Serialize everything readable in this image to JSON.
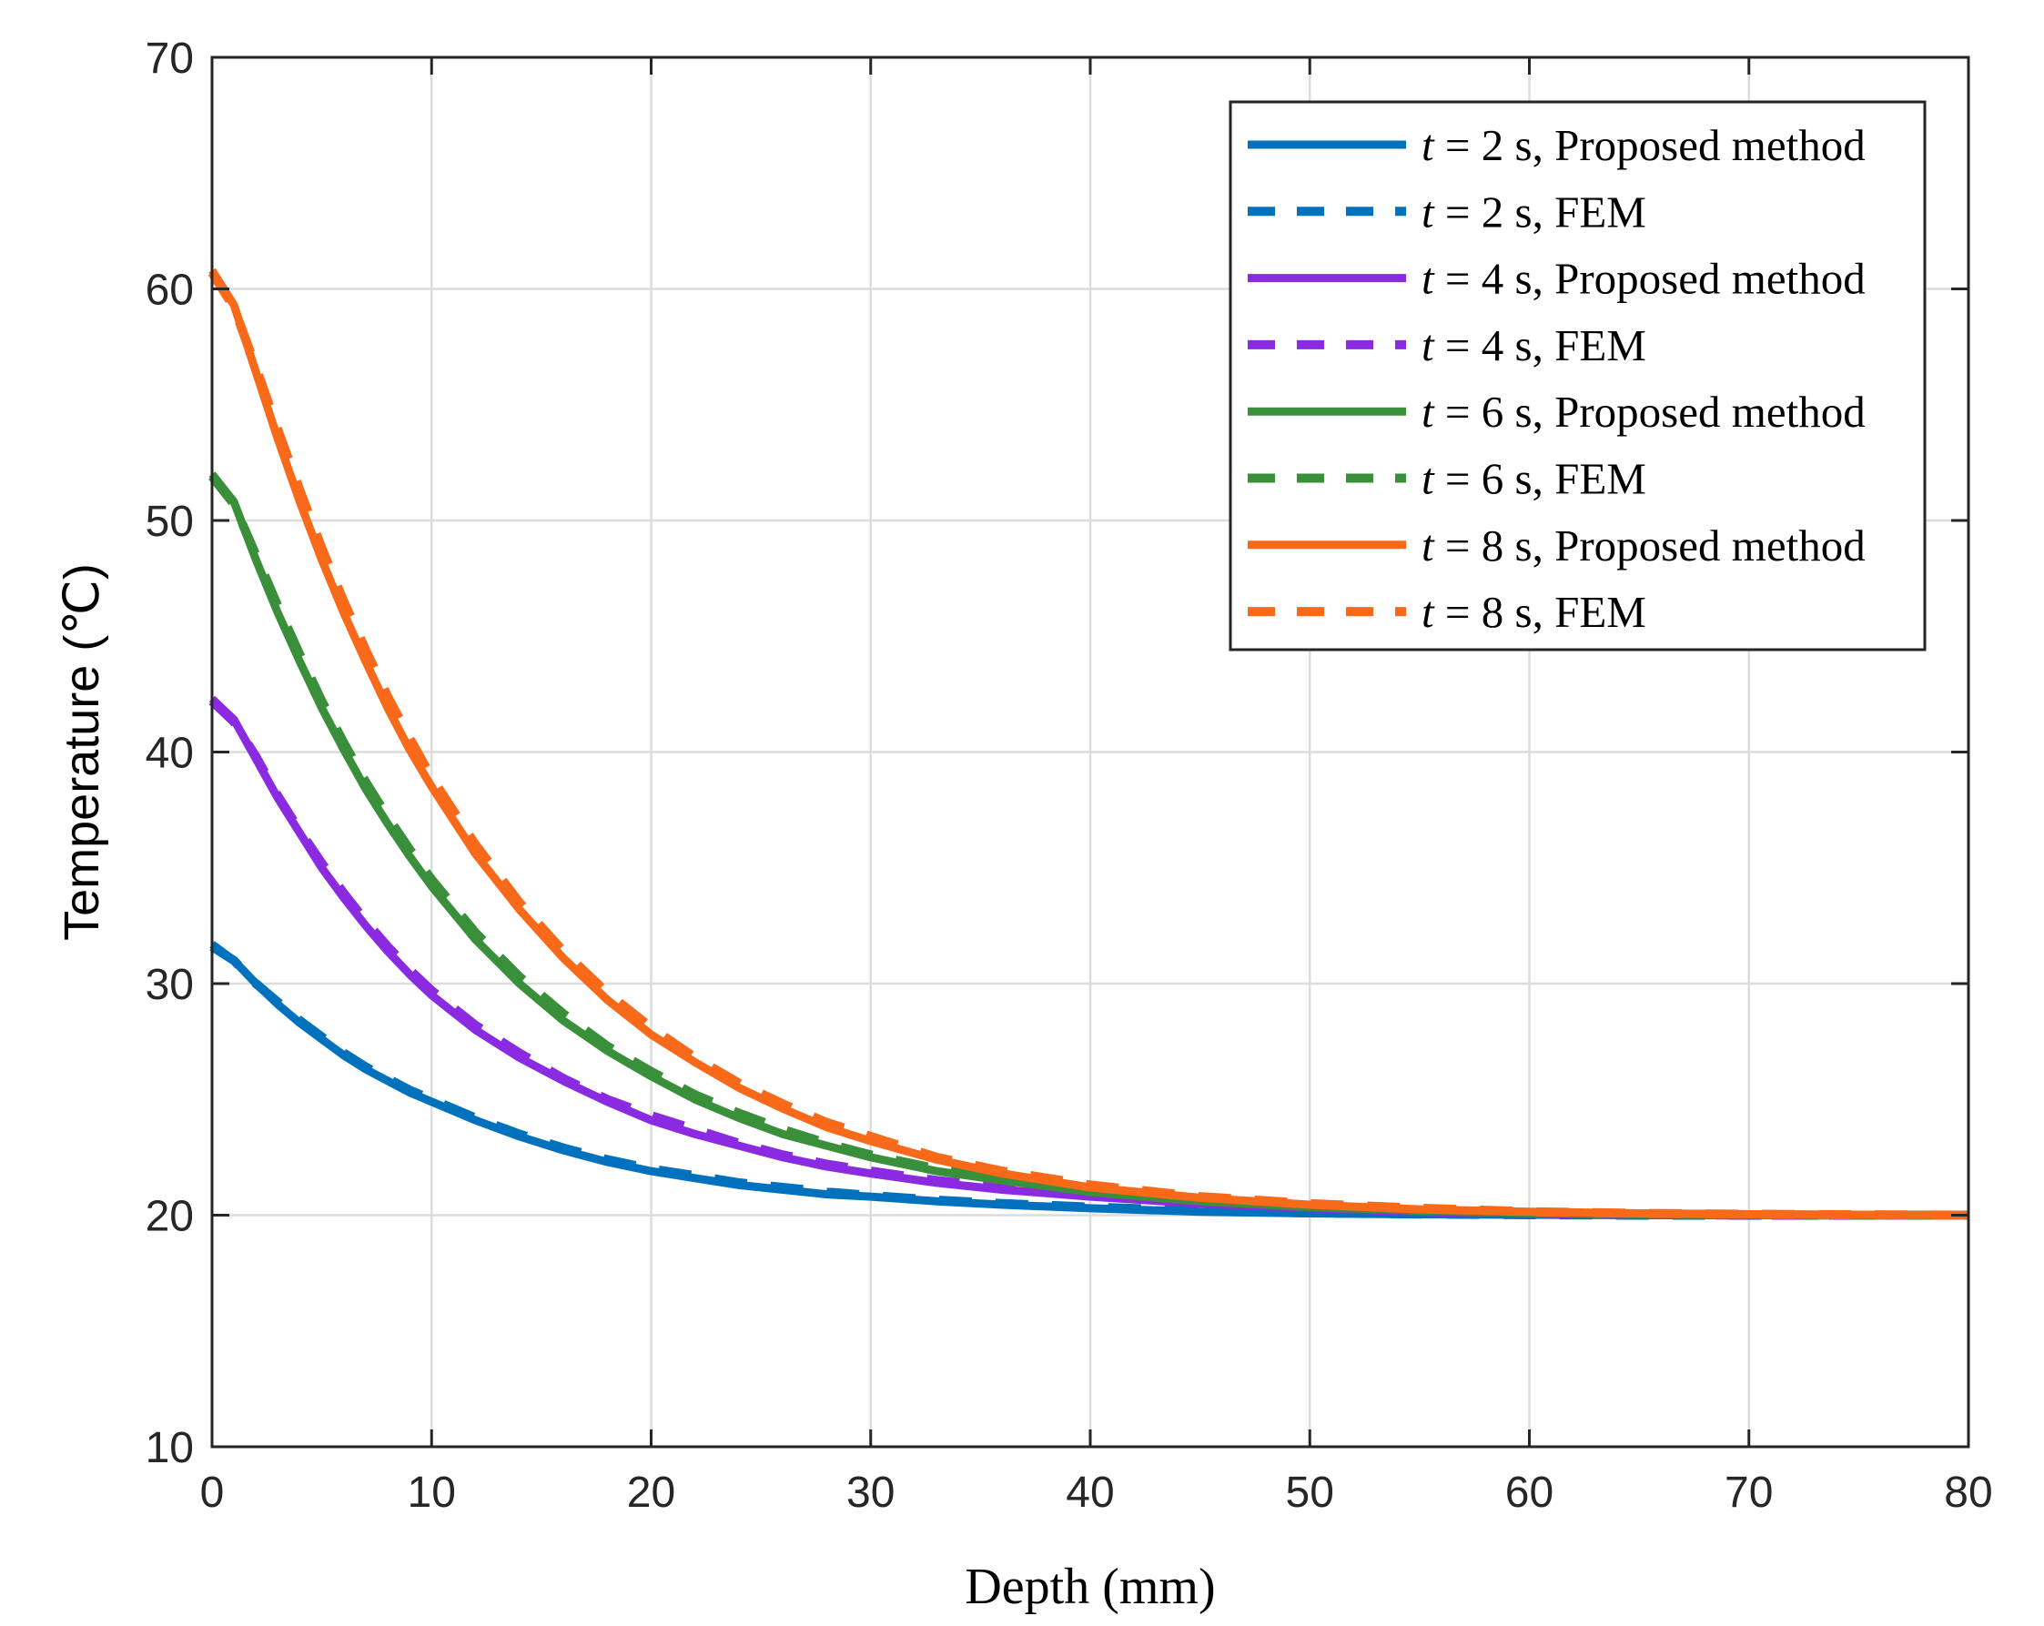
{
  "chart_data": {
    "type": "line",
    "title": "",
    "xlabel": "Depth (mm)",
    "ylabel": "Temperature (℃)",
    "xlim": [
      0,
      80
    ],
    "ylim": [
      10,
      70
    ],
    "xticks": [
      0,
      10,
      20,
      30,
      40,
      50,
      60,
      70,
      80
    ],
    "yticks": [
      10,
      20,
      30,
      40,
      50,
      60,
      70
    ],
    "grid": true,
    "legend_position": "top-right",
    "x": [
      0,
      1,
      2,
      3,
      4,
      5,
      6,
      7,
      8,
      9,
      10,
      12,
      14,
      16,
      18,
      20,
      22,
      24,
      26,
      28,
      30,
      33,
      36,
      40,
      45,
      50,
      55,
      60,
      65,
      70,
      75,
      80
    ],
    "series": [
      {
        "name": "t = 2 s, Proposed method",
        "t_label": "t",
        "rest_label": " = 2 s, Proposed method",
        "color": "#0072BD",
        "style": "solid",
        "values": [
          31.7,
          31.0,
          30.0,
          29.1,
          28.3,
          27.6,
          26.9,
          26.3,
          25.8,
          25.3,
          24.9,
          24.1,
          23.4,
          22.8,
          22.3,
          21.9,
          21.6,
          21.3,
          21.1,
          20.9,
          20.8,
          20.6,
          20.45,
          20.3,
          20.15,
          20.08,
          20.04,
          20.02,
          20.0,
          20.0,
          20.0,
          20.0
        ]
      },
      {
        "name": "t = 2 s, FEM",
        "t_label": "t",
        "rest_label": " = 2 s, FEM",
        "color": "#0072BD",
        "style": "dashed",
        "values": [
          31.6,
          31.0,
          30.0,
          29.2,
          28.4,
          27.7,
          27.0,
          26.4,
          25.9,
          25.4,
          25.0,
          24.2,
          23.5,
          22.9,
          22.4,
          22.0,
          21.7,
          21.4,
          21.2,
          21.0,
          20.85,
          20.65,
          20.5,
          20.35,
          20.2,
          20.1,
          20.05,
          20.02,
          20.0,
          20.0,
          20.0,
          20.0
        ]
      },
      {
        "name": "t = 4 s, Proposed method",
        "t_label": "t",
        "rest_label": " = 4 s, Proposed method",
        "color": "#8A2BE2",
        "style": "solid",
        "values": [
          42.3,
          41.4,
          39.7,
          38.0,
          36.5,
          35.0,
          33.7,
          32.5,
          31.4,
          30.4,
          29.5,
          28.0,
          26.8,
          25.8,
          24.9,
          24.1,
          23.5,
          23.0,
          22.5,
          22.1,
          21.8,
          21.4,
          21.1,
          20.8,
          20.5,
          20.3,
          20.15,
          20.08,
          20.03,
          20.0,
          20.0,
          20.0
        ]
      },
      {
        "name": "t = 4 s, FEM",
        "t_label": "t",
        "rest_label": " = 4 s, FEM",
        "color": "#8A2BE2",
        "style": "dashed",
        "values": [
          42.2,
          41.3,
          39.8,
          38.1,
          36.6,
          35.2,
          33.9,
          32.7,
          31.6,
          30.6,
          29.7,
          28.2,
          27.0,
          25.9,
          25.0,
          24.3,
          23.7,
          23.1,
          22.6,
          22.2,
          21.9,
          21.5,
          21.2,
          20.9,
          20.55,
          20.3,
          20.15,
          20.08,
          20.03,
          20.0,
          20.0,
          20.0
        ]
      },
      {
        "name": "t = 6 s, Proposed method",
        "t_label": "t",
        "rest_label": " = 6 s, Proposed method",
        "color": "#3A8F3A",
        "style": "solid",
        "values": [
          52.0,
          50.8,
          48.3,
          46.0,
          43.9,
          41.9,
          40.1,
          38.4,
          36.9,
          35.5,
          34.2,
          31.9,
          30.0,
          28.4,
          27.1,
          26.0,
          25.0,
          24.2,
          23.5,
          23.0,
          22.5,
          21.9,
          21.5,
          21.0,
          20.6,
          20.35,
          20.2,
          20.1,
          20.05,
          20.02,
          20.0,
          20.0
        ]
      },
      {
        "name": "t = 6 s, FEM",
        "t_label": "t",
        "rest_label": " = 6 s, FEM",
        "color": "#3A8F3A",
        "style": "dashed",
        "values": [
          51.9,
          50.7,
          48.5,
          46.3,
          44.2,
          42.2,
          40.4,
          38.7,
          37.2,
          35.8,
          34.5,
          32.2,
          30.3,
          28.7,
          27.3,
          26.2,
          25.2,
          24.4,
          23.7,
          23.1,
          22.6,
          22.0,
          21.6,
          21.1,
          20.65,
          20.4,
          20.2,
          20.1,
          20.05,
          20.02,
          20.0,
          20.0
        ]
      },
      {
        "name": "t = 8 s, Proposed method",
        "t_label": "t",
        "rest_label": " = 8 s, Proposed method",
        "color": "#F86A1A",
        "style": "solid",
        "values": [
          60.8,
          59.3,
          56.4,
          53.5,
          50.8,
          48.3,
          46.0,
          43.9,
          41.9,
          40.1,
          38.5,
          35.6,
          33.2,
          31.1,
          29.3,
          27.8,
          26.6,
          25.5,
          24.6,
          23.8,
          23.2,
          22.4,
          21.8,
          21.2,
          20.75,
          20.45,
          20.25,
          20.15,
          20.08,
          20.04,
          20.02,
          20.0
        ]
      },
      {
        "name": "t = 8 s, FEM",
        "t_label": "t",
        "rest_label": " = 8 s, FEM",
        "color": "#F86A1A",
        "style": "dashed",
        "values": [
          60.7,
          59.2,
          56.6,
          53.9,
          51.3,
          48.8,
          46.5,
          44.4,
          42.4,
          40.6,
          38.9,
          36.0,
          33.5,
          31.4,
          29.6,
          28.1,
          26.8,
          25.7,
          24.8,
          24.0,
          23.4,
          22.5,
          21.9,
          21.3,
          20.8,
          20.5,
          20.3,
          20.15,
          20.08,
          20.04,
          20.02,
          20.0
        ]
      }
    ]
  }
}
